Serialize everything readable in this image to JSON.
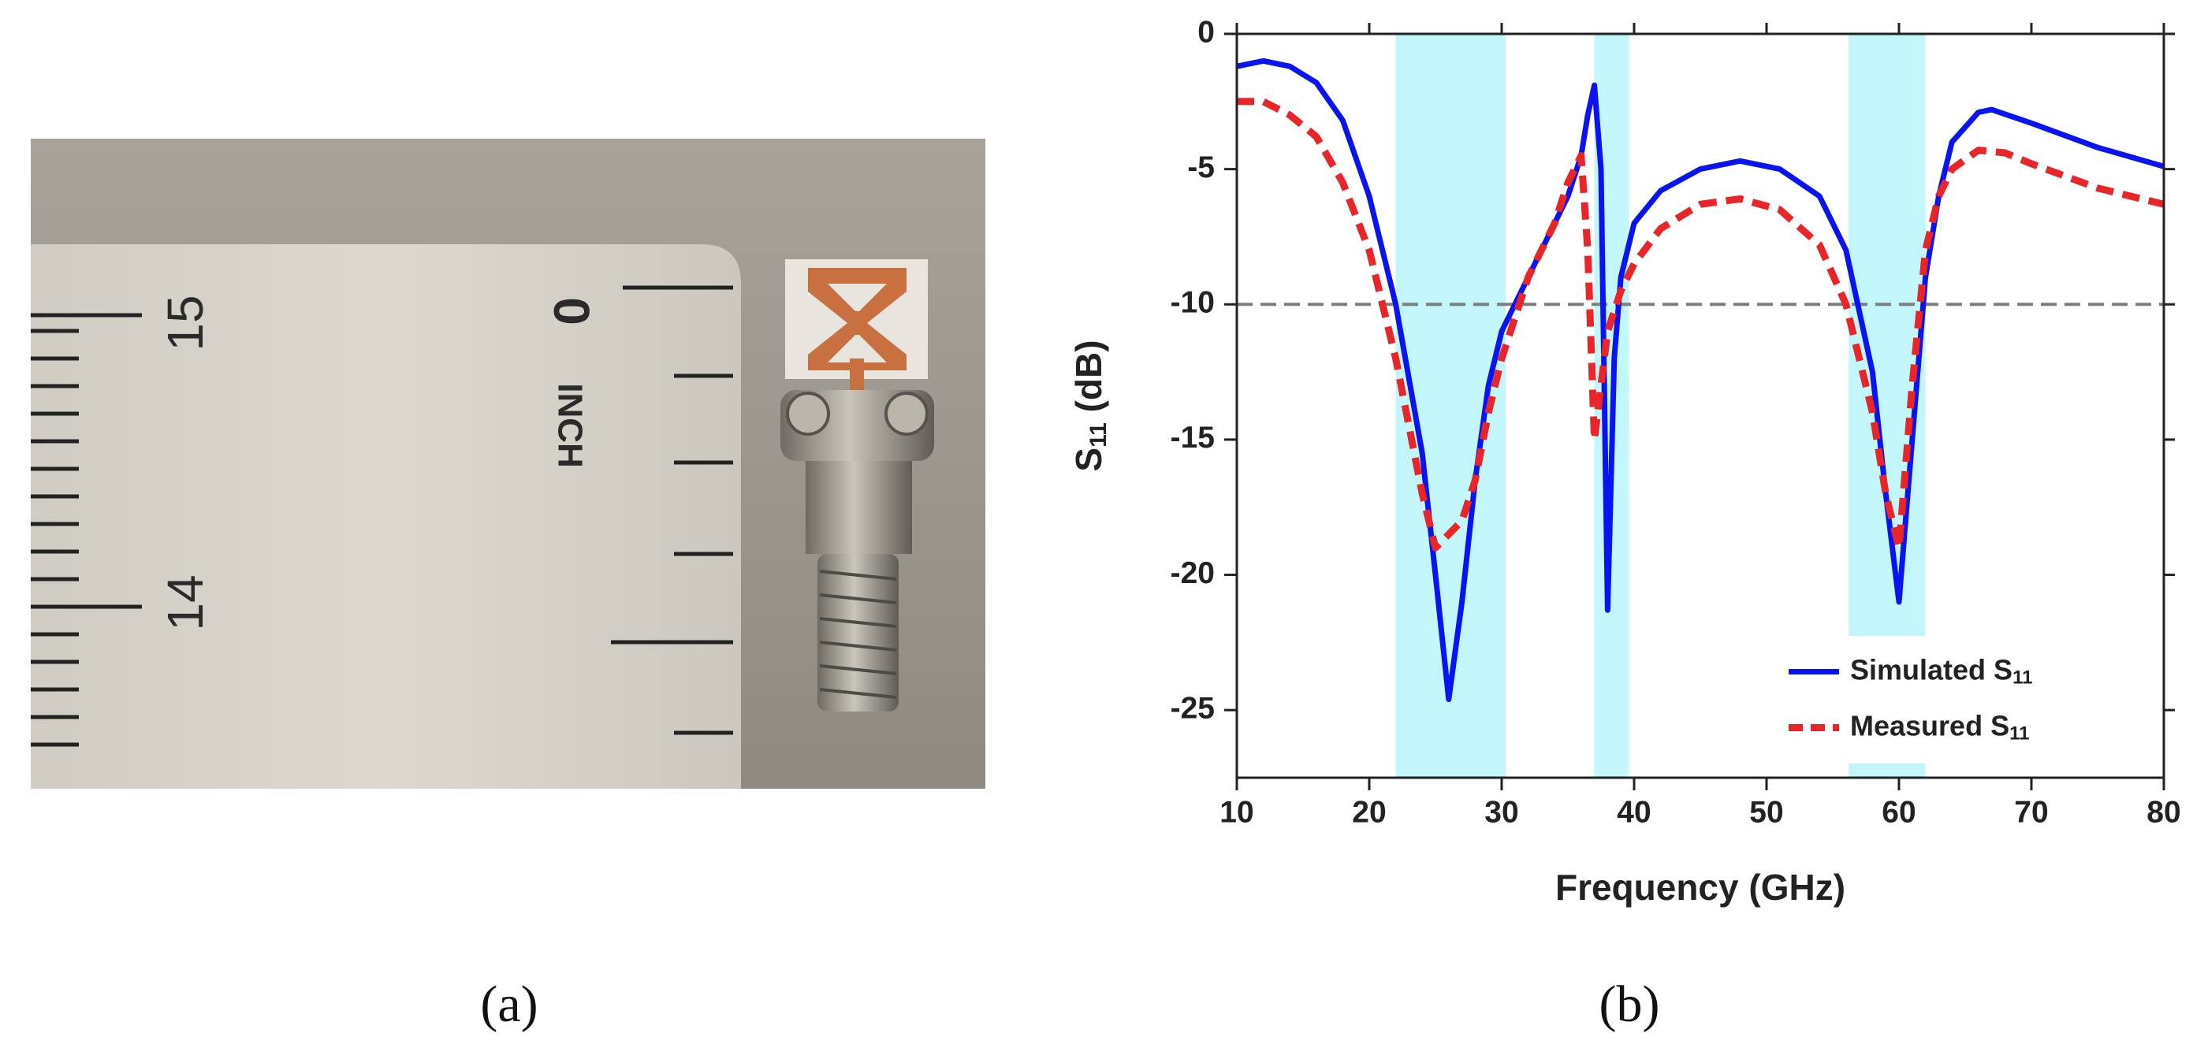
{
  "photo": {
    "labels": [
      "15",
      "14",
      "INCH",
      "0"
    ],
    "panel_label": "(a)"
  },
  "chart_data": {
    "type": "line",
    "panel_label": "(b)",
    "xlabel": "Frequency (GHz)",
    "ylabel": {
      "main": "S",
      "sub": "11",
      "rest": " (dB)"
    },
    "xlim": [
      10,
      80
    ],
    "ylim": [
      -27.5,
      0
    ],
    "xticks": [
      10,
      20,
      30,
      40,
      50,
      60,
      70,
      80
    ],
    "yticks": [
      0,
      -5,
      -10,
      -15,
      -20,
      -25
    ],
    "reference_line": -10,
    "bands": [
      [
        22,
        30.3
      ],
      [
        37,
        39.6
      ],
      [
        56.2,
        62
      ]
    ],
    "band_color": "#c2f6fa",
    "legend": "lower right",
    "series": [
      {
        "name": "Simulated S",
        "name_sub": "11",
        "color": "#0a14f0",
        "style": "solid",
        "x": [
          10,
          12,
          14,
          16,
          18,
          20,
          22,
          24,
          25,
          26,
          27,
          28,
          29,
          30,
          32,
          34,
          35,
          36,
          36.5,
          37,
          37.5,
          38,
          38.5,
          39,
          40,
          42,
          45,
          48,
          51,
          54,
          56,
          58,
          59,
          60,
          61,
          62,
          63,
          64,
          66,
          67,
          70,
          75,
          80
        ],
        "values": [
          -1.2,
          -1.0,
          -1.2,
          -1.8,
          -3.2,
          -6,
          -10,
          -15.5,
          -20,
          -24.6,
          -21,
          -16.5,
          -13,
          -11,
          -9,
          -7,
          -6,
          -4.5,
          -3,
          -1.9,
          -5,
          -21.3,
          -12,
          -9,
          -7,
          -5.8,
          -5,
          -4.7,
          -5,
          -6,
          -8,
          -12.5,
          -17,
          -21,
          -15,
          -9,
          -6,
          -4,
          -2.9,
          -2.8,
          -3.3,
          -4.2,
          -4.9
        ]
      },
      {
        "name": "Measured S",
        "name_sub": "11",
        "color": "#e8262a",
        "style": "dashed",
        "x": [
          10,
          12,
          14,
          16,
          18,
          20,
          21,
          22,
          23,
          24,
          25,
          26,
          27,
          28,
          29,
          30,
          32,
          34,
          35,
          36,
          36.5,
          37,
          37.5,
          38,
          39,
          40,
          42,
          45,
          48,
          51,
          54,
          56,
          58,
          59,
          60,
          61,
          62,
          63,
          64,
          66,
          68,
          70,
          75,
          80
        ],
        "values": [
          -2.5,
          -2.5,
          -3,
          -3.8,
          -5.5,
          -8,
          -10,
          -12,
          -14.5,
          -17,
          -19,
          -18.5,
          -18,
          -16.5,
          -14,
          -12,
          -9,
          -7,
          -5.5,
          -4.5,
          -8,
          -15,
          -13,
          -11,
          -9.5,
          -8.5,
          -7.2,
          -6.3,
          -6.1,
          -6.5,
          -7.8,
          -10,
          -14,
          -17,
          -19,
          -13,
          -8,
          -6,
          -5,
          -4.3,
          -4.4,
          -4.8,
          -5.7,
          -6.3
        ]
      }
    ]
  }
}
